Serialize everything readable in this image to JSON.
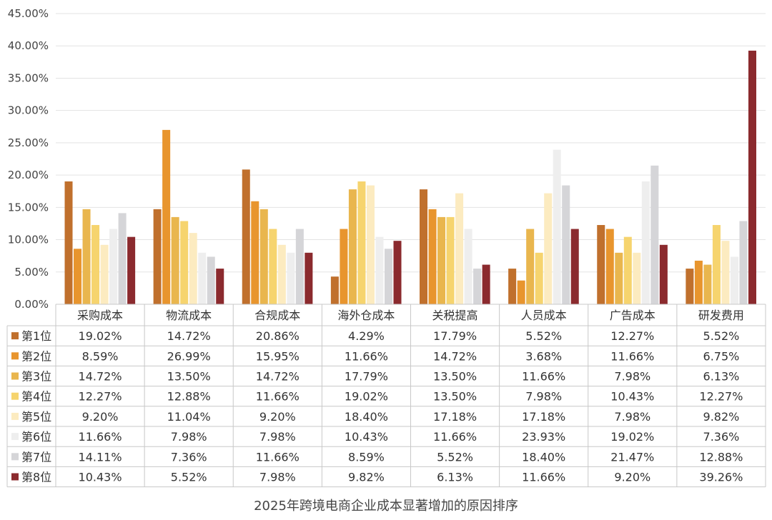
{
  "chart_data": {
    "type": "bar",
    "title": "2025年跨境电商企业成本显著增加的原因排序",
    "categories": [
      "采购成本",
      "物流成本",
      "合规成本",
      "海外仓成本",
      "关税提高",
      "人员成本",
      "广告成本",
      "研发费用"
    ],
    "ylim": [
      0,
      45
    ],
    "yticks": [
      "0.00%",
      "5.00%",
      "10.00%",
      "15.00%",
      "20.00%",
      "25.00%",
      "30.00%",
      "35.00%",
      "40.00%",
      "45.00%"
    ],
    "grid": true,
    "legend": "table-left",
    "series": [
      {
        "name": "第1位",
        "color": "#C0702D",
        "values": [
          19.02,
          14.72,
          20.86,
          4.29,
          17.79,
          5.52,
          12.27,
          5.52
        ],
        "labels": [
          "19.02%",
          "14.72%",
          "20.86%",
          "4.29%",
          "17.79%",
          "5.52%",
          "12.27%",
          "5.52%"
        ]
      },
      {
        "name": "第2位",
        "color": "#E8952E",
        "values": [
          8.59,
          26.99,
          15.95,
          11.66,
          14.72,
          3.68,
          11.66,
          6.75
        ],
        "labels": [
          "8.59%",
          "26.99%",
          "15.95%",
          "11.66%",
          "14.72%",
          "3.68%",
          "11.66%",
          "6.75%"
        ]
      },
      {
        "name": "第3位",
        "color": "#E9B64E",
        "values": [
          14.72,
          13.5,
          14.72,
          17.79,
          13.5,
          11.66,
          7.98,
          6.13
        ],
        "labels": [
          "14.72%",
          "13.50%",
          "14.72%",
          "17.79%",
          "13.50%",
          "11.66%",
          "7.98%",
          "6.13%"
        ]
      },
      {
        "name": "第4位",
        "color": "#F6D46E",
        "values": [
          12.27,
          12.88,
          11.66,
          19.02,
          13.5,
          7.98,
          10.43,
          12.27
        ],
        "labels": [
          "12.27%",
          "12.88%",
          "11.66%",
          "19.02%",
          "13.50%",
          "7.98%",
          "10.43%",
          "12.27%"
        ]
      },
      {
        "name": "第5位",
        "color": "#FCEBC0",
        "values": [
          9.2,
          11.04,
          9.2,
          18.4,
          17.18,
          17.18,
          7.98,
          9.82
        ],
        "labels": [
          "9.20%",
          "11.04%",
          "9.20%",
          "18.40%",
          "17.18%",
          "17.18%",
          "7.98%",
          "9.82%"
        ]
      },
      {
        "name": "第6位",
        "color": "#EEEEEE",
        "values": [
          11.66,
          7.98,
          7.98,
          10.43,
          11.66,
          23.93,
          19.02,
          7.36
        ],
        "labels": [
          "11.66%",
          "7.98%",
          "7.98%",
          "10.43%",
          "11.66%",
          "23.93%",
          "19.02%",
          "7.36%"
        ]
      },
      {
        "name": "第7位",
        "color": "#D5D5D8",
        "values": [
          14.11,
          7.36,
          11.66,
          8.59,
          5.52,
          18.4,
          21.47,
          12.88
        ],
        "labels": [
          "14.11%",
          "7.36%",
          "11.66%",
          "8.59%",
          "5.52%",
          "18.40%",
          "21.47%",
          "12.88%"
        ]
      },
      {
        "name": "第8位",
        "color": "#8B2A2E",
        "values": [
          10.43,
          5.52,
          7.98,
          9.82,
          6.13,
          11.66,
          9.2,
          39.26
        ],
        "labels": [
          "10.43%",
          "5.52%",
          "7.98%",
          "9.82%",
          "6.13%",
          "11.66%",
          "9.20%",
          "39.26%"
        ]
      }
    ]
  }
}
